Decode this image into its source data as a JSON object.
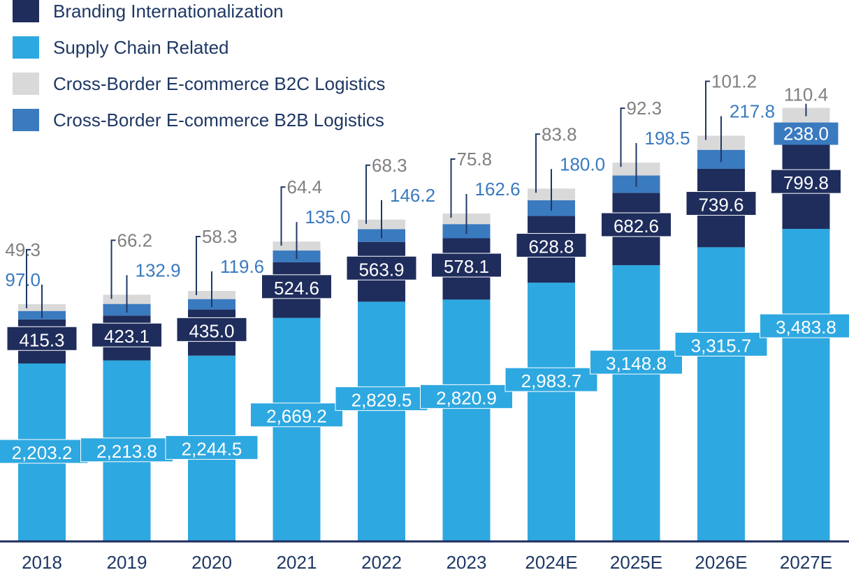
{
  "chart_data": {
    "type": "bar",
    "stacked": true,
    "title": "",
    "xlabel": "",
    "ylabel": "",
    "categories": [
      "2018",
      "2019",
      "2020",
      "2021",
      "2022",
      "2023",
      "2024E",
      "2025E",
      "2026E",
      "2027E"
    ],
    "series": [
      {
        "name": "Supply Chain Related",
        "color": "#2ea8e0",
        "label_color": "#ffffff",
        "values": [
          2203.2,
          2213.8,
          2244.5,
          2669.2,
          2829.5,
          2820.9,
          2983.7,
          3148.8,
          3315.7,
          3483.8
        ],
        "labels": [
          "2,203.2",
          "2,213.8",
          "2,244.5",
          "2,669.2",
          "2,829.5",
          "2,820.9",
          "2,983.7",
          "3,148.8",
          "3,315.7",
          "3,483.8"
        ]
      },
      {
        "name": "Branding Internationalization",
        "color": "#1f2d5c",
        "label_color": "#ffffff",
        "values": [
          415.3,
          423.1,
          435.0,
          524.6,
          563.9,
          578.1,
          628.8,
          682.6,
          739.6,
          799.8
        ],
        "labels": [
          "415.3",
          "423.1",
          "435.0",
          "524.6",
          "563.9",
          "578.1",
          "628.8",
          "682.6",
          "739.6",
          "799.8"
        ]
      },
      {
        "name": "Cross-Border E-commerce B2B Logistics",
        "color": "#3a7abf",
        "label_color": "#3a7abf",
        "values": [
          97.0,
          132.9,
          119.6,
          135.0,
          146.2,
          162.6,
          180.0,
          198.5,
          217.8,
          238.0
        ],
        "labels": [
          "97.0",
          "132.9",
          "119.6",
          "135.0",
          "146.2",
          "162.6",
          "180.0",
          "198.5",
          "217.8",
          "238.0"
        ]
      },
      {
        "name": "Cross-Border E-commerce B2C Logistics",
        "color": "#d9d9d9",
        "label_color": "#808080",
        "values": [
          49.3,
          66.2,
          58.3,
          64.4,
          68.3,
          75.8,
          83.8,
          92.3,
          101.2,
          110.4
        ],
        "labels": [
          "49.3",
          "66.2",
          "58.3",
          "64.4",
          "68.3",
          "75.8",
          "83.8",
          "92.3",
          "101.2",
          "110.4"
        ]
      }
    ],
    "legend": {
      "position": "top-left",
      "entries": [
        {
          "label": "Branding Internationalization",
          "color": "#1f2d5c"
        },
        {
          "label": "Supply Chain Related",
          "color": "#2ea8e0"
        },
        {
          "label": "Cross-Border E-commerce B2C Logistics",
          "color": "#d9d9d9"
        },
        {
          "label": "Cross-Border E-commerce B2B Logistics",
          "color": "#3a7abf"
        }
      ]
    },
    "axis_color": "#1f2d5c",
    "tick_color": "#1f3864",
    "grid": false
  }
}
